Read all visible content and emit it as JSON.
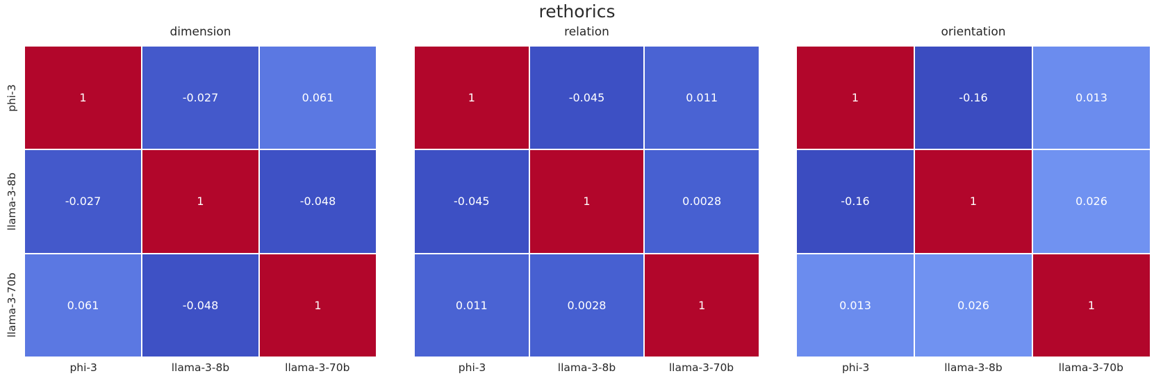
{
  "title": "rethorics",
  "palette": {
    "background": "#ffffff",
    "text": "#262626",
    "title_text": "#2b2b2b",
    "cell_text": "#ffffff",
    "diagonal_red": "#b2062b",
    "min_blue": "#3b4cc0"
  },
  "axis": {
    "row_labels": [
      "phi-3",
      "llama-3-8b",
      "llama-3-70b"
    ],
    "col_labels": [
      "phi-3",
      "llama-3-8b",
      "llama-3-70b"
    ]
  },
  "panels": [
    {
      "title": "dimension",
      "cells": [
        [
          "1",
          "-0.027",
          "0.061"
        ],
        [
          "-0.027",
          "1",
          "-0.048"
        ],
        [
          "0.061",
          "-0.048",
          "1"
        ]
      ],
      "colors": [
        [
          "#b2062b",
          "#4459cb",
          "#5b78e2"
        ],
        [
          "#4459cb",
          "#b2062b",
          "#3e51c5"
        ],
        [
          "#5b78e2",
          "#3e51c5",
          "#b2062b"
        ]
      ]
    },
    {
      "title": "relation",
      "cells": [
        [
          "1",
          "-0.045",
          "0.011"
        ],
        [
          "-0.045",
          "1",
          "0.0028"
        ],
        [
          "0.011",
          "0.0028",
          "1"
        ]
      ],
      "colors": [
        [
          "#b2062b",
          "#3d50c4",
          "#4a63d3"
        ],
        [
          "#3d50c4",
          "#b2062b",
          "#4760d1"
        ],
        [
          "#4a63d3",
          "#4760d1",
          "#b2062b"
        ]
      ]
    },
    {
      "title": "orientation",
      "cells": [
        [
          "1",
          "-0.16",
          "0.013"
        ],
        [
          "-0.16",
          "1",
          "0.026"
        ],
        [
          "0.013",
          "0.026",
          "1"
        ]
      ],
      "colors": [
        [
          "#b2062b",
          "#3b4cc0",
          "#6b8cee"
        ],
        [
          "#3b4cc0",
          "#b2062b",
          "#7092f1"
        ],
        [
          "#6b8cee",
          "#7092f1",
          "#b2062b"
        ]
      ]
    }
  ],
  "chart_data": [
    {
      "type": "heatmap",
      "title": "dimension",
      "suptitle": "rethorics",
      "x_labels": [
        "phi-3",
        "llama-3-8b",
        "llama-3-70b"
      ],
      "y_labels": [
        "phi-3",
        "llama-3-8b",
        "llama-3-70b"
      ],
      "values": [
        [
          1,
          -0.027,
          0.061
        ],
        [
          -0.027,
          1,
          -0.048
        ],
        [
          0.061,
          -0.048,
          1
        ]
      ],
      "colormap": "coolwarm",
      "annotated": true,
      "colorbar": false,
      "grid": false,
      "legend": "none"
    },
    {
      "type": "heatmap",
      "title": "relation",
      "suptitle": "rethorics",
      "x_labels": [
        "phi-3",
        "llama-3-8b",
        "llama-3-70b"
      ],
      "y_labels": [
        "phi-3",
        "llama-3-8b",
        "llama-3-70b"
      ],
      "values": [
        [
          1,
          -0.045,
          0.011
        ],
        [
          -0.045,
          1,
          0.0028
        ],
        [
          0.011,
          0.0028,
          1
        ]
      ],
      "colormap": "coolwarm",
      "annotated": true,
      "colorbar": false,
      "grid": false,
      "legend": "none"
    },
    {
      "type": "heatmap",
      "title": "orientation",
      "suptitle": "rethorics",
      "x_labels": [
        "phi-3",
        "llama-3-8b",
        "llama-3-70b"
      ],
      "y_labels": [
        "phi-3",
        "llama-3-8b",
        "llama-3-70b"
      ],
      "values": [
        [
          1,
          -0.16,
          0.013
        ],
        [
          -0.16,
          1,
          0.026
        ],
        [
          0.013,
          0.026,
          1
        ]
      ],
      "colormap": "coolwarm",
      "annotated": true,
      "colorbar": false,
      "grid": false,
      "legend": "none"
    }
  ]
}
